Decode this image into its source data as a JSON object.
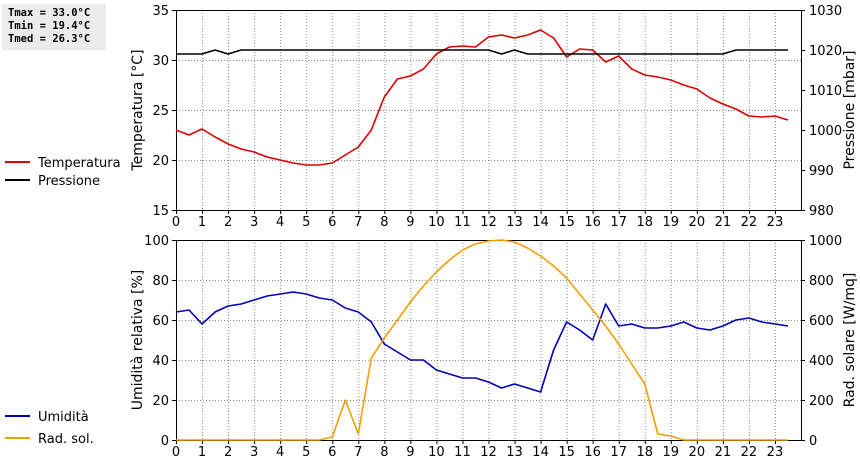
{
  "stats": {
    "tmax": "Tmax = 33.0°C",
    "tmin": "Tmin = 19.4°C",
    "tmed": "Tmed = 26.3°C"
  },
  "chart_data": [
    {
      "type": "line",
      "xlim": [
        0,
        24
      ],
      "x_ticks": [
        0,
        1,
        2,
        3,
        4,
        5,
        6,
        7,
        8,
        9,
        10,
        11,
        12,
        13,
        14,
        15,
        16,
        17,
        18,
        19,
        20,
        21,
        22,
        23
      ],
      "ylabel": "Temperatura [°C]",
      "ylim": [
        15,
        35
      ],
      "y_ticks": [
        15,
        20,
        25,
        30,
        35
      ],
      "y2label": "Pressione [mbar]",
      "y2lim": [
        980,
        1030
      ],
      "y2_ticks": [
        980,
        990,
        1000,
        1010,
        1020,
        1030
      ],
      "grid": true,
      "legend_position": "left",
      "x": [
        0,
        0.5,
        1,
        1.5,
        2,
        2.5,
        3,
        3.5,
        4,
        4.5,
        5,
        5.5,
        6,
        6.5,
        7,
        7.5,
        8,
        8.5,
        9,
        9.5,
        10,
        10.5,
        11,
        11.5,
        12,
        12.5,
        13,
        13.5,
        14,
        14.5,
        15,
        15.5,
        16,
        16.5,
        17,
        17.5,
        18,
        18.5,
        19,
        19.5,
        20,
        20.5,
        21,
        21.5,
        22,
        22.5,
        23,
        23.5
      ],
      "series": [
        {
          "name": "Temperatura",
          "color": "#dd0000",
          "axis": "left",
          "values": [
            23.0,
            22.5,
            23.1,
            22.3,
            21.6,
            21.1,
            20.8,
            20.3,
            20.0,
            19.7,
            19.5,
            19.5,
            19.7,
            20.5,
            21.3,
            23.0,
            26.3,
            28.1,
            28.4,
            29.1,
            30.6,
            31.3,
            31.4,
            31.3,
            32.3,
            32.5,
            32.2,
            32.5,
            33.0,
            32.2,
            30.3,
            31.1,
            31.0,
            29.8,
            30.4,
            29.1,
            28.5,
            28.3,
            28.0,
            27.5,
            27.1,
            26.2,
            25.6,
            25.1,
            24.4,
            24.3,
            24.4,
            24.0
          ]
        },
        {
          "name": "Pressione",
          "color": "#000000",
          "axis": "right",
          "values": [
            1019,
            1019,
            1019,
            1020,
            1019,
            1020,
            1020,
            1020,
            1020,
            1020,
            1020,
            1020,
            1020,
            1020,
            1020,
            1020,
            1020,
            1020,
            1020,
            1020,
            1020,
            1020,
            1020,
            1020,
            1020,
            1019,
            1020,
            1019,
            1019,
            1019,
            1019,
            1019,
            1019,
            1019,
            1019,
            1019,
            1019,
            1019,
            1019,
            1019,
            1019,
            1019,
            1019,
            1020,
            1020,
            1020,
            1020,
            1020
          ]
        }
      ]
    },
    {
      "type": "line",
      "xlim": [
        0,
        24
      ],
      "x_ticks": [
        0,
        1,
        2,
        3,
        4,
        5,
        6,
        7,
        8,
        9,
        10,
        11,
        12,
        13,
        14,
        15,
        16,
        17,
        18,
        19,
        20,
        21,
        22,
        23
      ],
      "ylabel": "Umidità relativa [%]",
      "ylim": [
        0,
        100
      ],
      "y_ticks": [
        0,
        20,
        40,
        60,
        80,
        100
      ],
      "y2label": "Rad. solare [W/mq]",
      "y2lim": [
        0,
        1000
      ],
      "y2_ticks": [
        0,
        200,
        400,
        600,
        800,
        1000
      ],
      "grid": true,
      "legend_position": "left",
      "x": [
        0,
        0.5,
        1,
        1.5,
        2,
        2.5,
        3,
        3.5,
        4,
        4.5,
        5,
        5.5,
        6,
        6.5,
        7,
        7.5,
        8,
        8.5,
        9,
        9.5,
        10,
        10.5,
        11,
        11.5,
        12,
        12.5,
        13,
        13.5,
        14,
        14.5,
        15,
        15.5,
        16,
        16.5,
        17,
        17.5,
        18,
        18.5,
        19,
        19.5,
        20,
        20.5,
        21,
        21.5,
        22,
        22.5,
        23,
        23.5
      ],
      "series": [
        {
          "name": "Umidità",
          "color": "#0000bb",
          "axis": "left",
          "values": [
            64,
            65,
            58,
            64,
            67,
            68,
            70,
            72,
            73,
            74,
            73,
            71,
            70,
            66,
            64,
            59,
            48,
            44,
            40,
            40,
            35,
            33,
            31,
            31,
            29,
            26,
            28,
            26,
            24,
            45,
            59,
            55,
            50,
            68,
            57,
            58,
            56,
            56,
            57,
            59,
            56,
            55,
            57,
            60,
            61,
            59,
            58,
            57
          ]
        },
        {
          "name": "Rad. sol.",
          "color": "#f0a000",
          "axis": "right",
          "values": [
            0,
            0,
            0,
            0,
            0,
            0,
            0,
            0,
            0,
            0,
            0,
            0,
            15,
            200,
            30,
            410,
            510,
            600,
            690,
            770,
            840,
            900,
            950,
            980,
            995,
            1000,
            990,
            960,
            920,
            870,
            810,
            730,
            650,
            570,
            480,
            380,
            280,
            30,
            20,
            0,
            0,
            0,
            0,
            0,
            0,
            0,
            0,
            0
          ]
        }
      ]
    }
  ]
}
